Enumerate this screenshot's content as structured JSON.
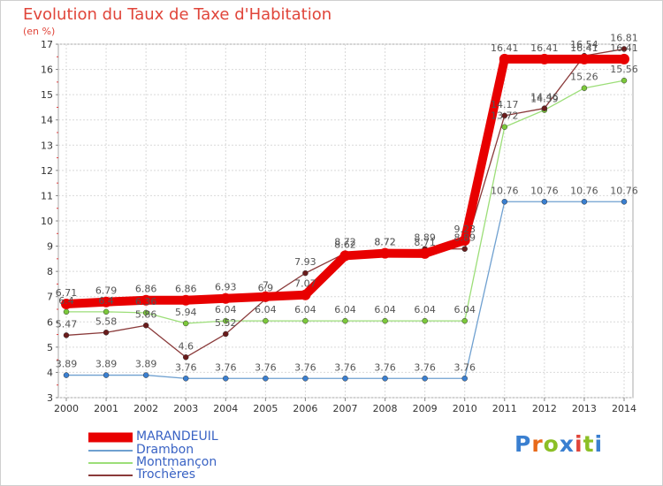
{
  "logo": {
    "text": "Proxiti",
    "colors": [
      "#3a7fd0",
      "#e86a1a",
      "#8cbf26",
      "#3a7fd0",
      "#e0453a",
      "#8cbf26",
      "#3a7fd0"
    ]
  },
  "chart_data": {
    "type": "line",
    "title": "Evolution du Taux de Taxe d'Habitation",
    "subtitle": "(en %)",
    "xlabel": "",
    "ylabel": "",
    "ylim": [
      3,
      17
    ],
    "yticks": [
      3,
      4,
      5,
      6,
      7,
      8,
      9,
      10,
      11,
      12,
      13,
      14,
      15,
      16,
      17
    ],
    "grid": true,
    "legend": "bottom-left",
    "x": [
      "2000",
      "2001",
      "2002",
      "2003",
      "2004",
      "2005",
      "2006",
      "2007",
      "2008",
      "2009",
      "2010",
      "2011",
      "2012",
      "2013",
      "2014"
    ],
    "series": [
      {
        "name": "MARANDEUIL",
        "color": "#e80000",
        "line_color": "#e80000",
        "marker_color": "#e80000",
        "values": [
          6.71,
          6.79,
          6.86,
          6.86,
          6.93,
          7,
          7.07,
          8.62,
          8.72,
          8.71,
          9.23,
          16.41,
          16.41,
          16.41,
          16.41
        ]
      },
      {
        "name": "Drambon",
        "color": "#6fa0d0",
        "line_color": "#6fa0d0",
        "marker_color": "#3a7fd0",
        "values": [
          3.89,
          3.89,
          3.89,
          3.76,
          3.76,
          3.76,
          3.76,
          3.76,
          3.76,
          3.76,
          3.76,
          10.76,
          10.76,
          10.76,
          10.76
        ]
      },
      {
        "name": "Montmançon",
        "color": "#9cde78",
        "line_color": "#9cde78",
        "marker_color": "#7cc93b",
        "values": [
          6.4,
          6.4,
          6.36,
          5.94,
          6.04,
          6.04,
          6.04,
          6.04,
          6.04,
          6.04,
          6.04,
          13.72,
          14.39,
          15.26,
          15.56
        ]
      },
      {
        "name": "Trochères",
        "color": "#8a3a3a",
        "line_color": "#8a3a3a",
        "marker_color": "#6a1c1c",
        "values": [
          5.47,
          5.58,
          5.86,
          4.6,
          5.52,
          6.9,
          7.93,
          8.72,
          8.72,
          8.89,
          8.89,
          14.17,
          14.46,
          16.54,
          16.81
        ]
      }
    ],
    "data_labels": [
      [
        "6.71",
        "6.79",
        "6.86",
        "6.86",
        "6.93",
        "7",
        "7.07",
        "8.62",
        "8.72",
        "8.71",
        "9.23",
        "16.41",
        "16.41",
        "16.41",
        "16.41"
      ],
      [
        "3.89",
        "3.89",
        "3.89",
        "3.76",
        "3.76",
        "3.76",
        "3.76",
        "3.76",
        "3.76",
        "3.76",
        "3.76",
        "10.76",
        "10.76",
        "10.76",
        "10.76"
      ],
      [
        "6.4",
        "6.4",
        "6.36",
        "5.94",
        "6.04",
        "6.04",
        "6.04",
        "6.04",
        "6.04",
        "6.04",
        "6.04",
        "13.72",
        "14.39",
        "15.26",
        "15.56"
      ],
      [
        "5.47",
        "5.58",
        "5.86",
        "4.6",
        "5.52",
        "6.9",
        "7.93",
        "8.72",
        "8.72",
        "8.89",
        "8.89",
        "14.17",
        "14.46",
        "16.54",
        "16.81"
      ]
    ]
  }
}
